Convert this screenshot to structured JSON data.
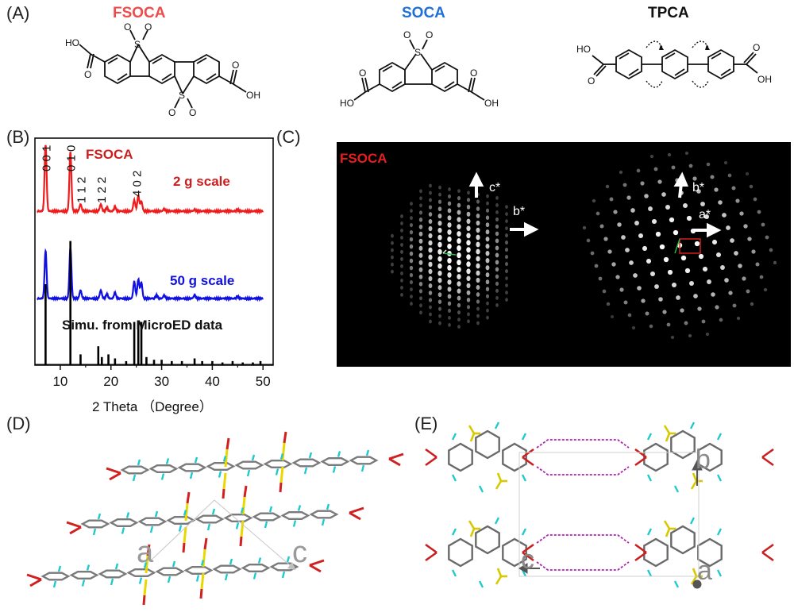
{
  "panels": {
    "A": "(A)",
    "B": "(B)",
    "C": "(C)",
    "D": "(D)",
    "E": "(E)"
  },
  "molecules": [
    {
      "name": "FSOCA",
      "color": "#f04b4b"
    },
    {
      "name": "SOCA",
      "color": "#1f6fd6"
    },
    {
      "name": "TPCA",
      "color": "#111111"
    }
  ],
  "atoms": {
    "S": "S",
    "O": "O",
    "OH": "OH",
    "HO": "HO"
  },
  "colors": {
    "red": "#ee1c1c",
    "blue": "#1010e0",
    "black": "#000000",
    "fsoca_red": "#d42020",
    "yellow": "#e8d800",
    "cyan": "#20c8d0",
    "magenta": "#b020b0"
  },
  "chart_data": {
    "type": "line",
    "title": "FSOCA",
    "xlabel": "2 Theta （Degree）",
    "ylabel": "",
    "xlim": [
      5,
      52
    ],
    "xticks": [
      10,
      20,
      30,
      40,
      50
    ],
    "series": [
      {
        "name": "2 g scale",
        "color": "#ee1c1c",
        "offset": 2,
        "peaks": [
          [
            7.1,
            0.95
          ],
          [
            12.0,
            0.85
          ],
          [
            14.0,
            0.1
          ],
          [
            18.0,
            0.1
          ],
          [
            19.2,
            0.05
          ],
          [
            20.8,
            0.06
          ],
          [
            24.6,
            0.16
          ],
          [
            25.4,
            0.22
          ],
          [
            26.0,
            0.14
          ],
          [
            30.5,
            0.03
          ],
          [
            36.5,
            0.02
          ],
          [
            45.0,
            0.02
          ]
        ]
      },
      {
        "name": "50 g scale",
        "color": "#1010e0",
        "offset": 1,
        "peaks": [
          [
            7.1,
            0.75
          ],
          [
            12.0,
            0.8
          ],
          [
            14.0,
            0.13
          ],
          [
            18.0,
            0.13
          ],
          [
            19.2,
            0.07
          ],
          [
            20.8,
            0.09
          ],
          [
            24.6,
            0.27
          ],
          [
            25.4,
            0.3
          ],
          [
            26.0,
            0.25
          ],
          [
            29.0,
            0.05
          ],
          [
            30.5,
            0.05
          ],
          [
            36.5,
            0.05
          ],
          [
            45.0,
            0.03
          ]
        ]
      },
      {
        "name": "Simu. from MicroED data",
        "color": "#000000",
        "offset": 0,
        "sticks": [
          [
            7.1,
            0.6
          ],
          [
            12.0,
            0.92
          ],
          [
            14.0,
            0.08
          ],
          [
            17.5,
            0.14
          ],
          [
            18.2,
            0.06
          ],
          [
            19.5,
            0.08
          ],
          [
            20.8,
            0.05
          ],
          [
            23.0,
            0.03
          ],
          [
            24.6,
            0.32
          ],
          [
            25.4,
            0.32
          ],
          [
            26.0,
            0.32
          ],
          [
            27.0,
            0.06
          ],
          [
            28.5,
            0.04
          ],
          [
            30.0,
            0.04
          ],
          [
            32.0,
            0.03
          ],
          [
            34.0,
            0.03
          ],
          [
            36.5,
            0.05
          ],
          [
            38.0,
            0.03
          ],
          [
            40.0,
            0.03
          ],
          [
            42.0,
            0.02
          ],
          [
            44.0,
            0.03
          ],
          [
            46.0,
            0.02
          ],
          [
            48.0,
            0.02
          ],
          [
            49.5,
            0.03
          ]
        ]
      }
    ],
    "annotations": [
      {
        "text": "0 0 1",
        "x": 7.1
      },
      {
        "text": "0 1 0",
        "x": 12.0
      },
      {
        "text": "1 1 2",
        "x": 14.0
      },
      {
        "text": "1 2 2",
        "x": 18.0
      },
      {
        "text": "4 0 2",
        "x": 25.0
      }
    ]
  },
  "diffraction": {
    "title": "FSOCA",
    "left_axes": [
      "c*",
      "b*"
    ],
    "right_axes": [
      "b*",
      "a*"
    ]
  },
  "crystal": {
    "D_axes": [
      "a",
      "c"
    ],
    "E_axes": [
      "b",
      "c",
      "a"
    ]
  }
}
